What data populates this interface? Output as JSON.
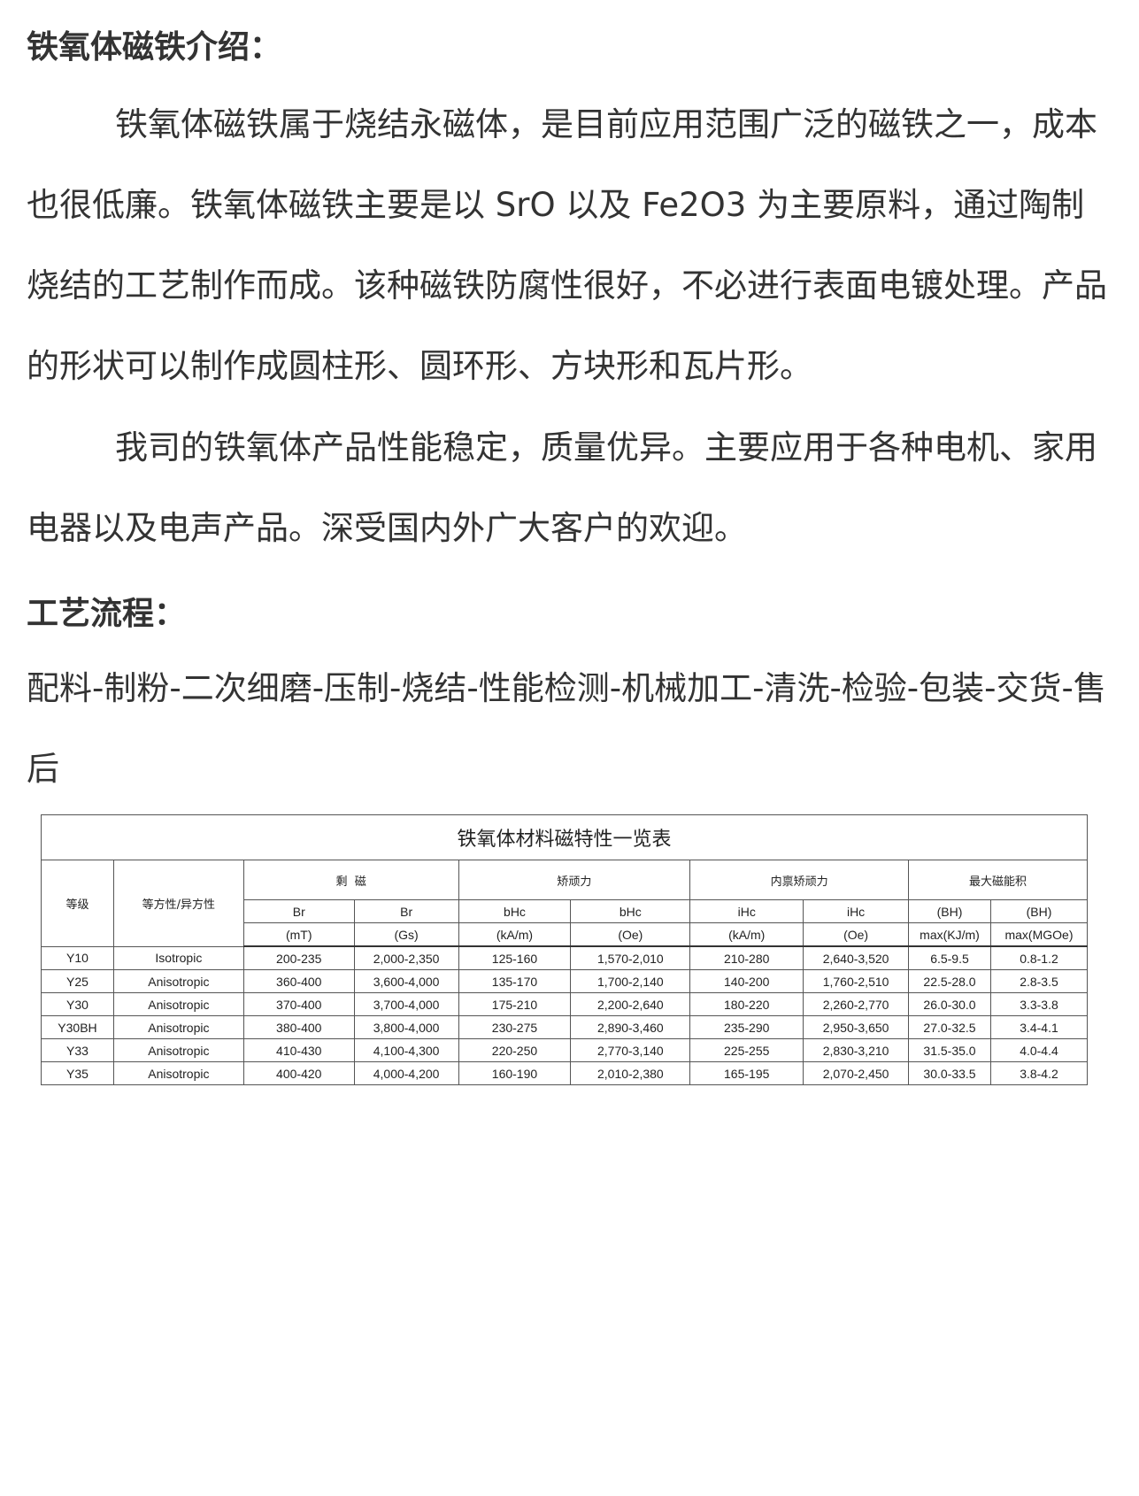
{
  "intro": {
    "heading": "铁氧体磁铁介绍：",
    "para1": "铁氧体磁铁属于烧结永磁体，是目前应用范围广泛的磁铁之一，成本也很低廉。铁氧体磁铁主要是以 SrO 以及 Fe2O3 为主要原料，通过陶制烧结的工艺制作而成。该种磁铁防腐性很好，不必进行表面电镀处理。产品的形状可以制作成圆柱形、圆环形、方块形和瓦片形。",
    "para2": "我司的铁氧体产品性能稳定，质量优异。主要应用于各种电机、家用电器以及电声产品。深受国内外广大客户的欢迎。"
  },
  "process": {
    "heading": "工艺流程：",
    "steps": "配料-制粉-二次细磨-压制-烧结-性能检测-机械加工-清洗-检验-包装-交货-售后"
  },
  "table": {
    "title": "铁氧体材料磁特性一览表",
    "grade": "等级",
    "isotropy": "等方性/异方性",
    "groups": [
      "剩  磁",
      "矫顽力",
      "内禀矫顽力",
      "最大磁能积"
    ],
    "sub1": [
      "Br",
      "Br",
      "bHc",
      "bHc",
      "iHc",
      "iHc",
      "(BH)",
      "(BH)"
    ],
    "sub2": [
      "(mT)",
      "(Gs)",
      "(kA/m)",
      "(Oe)",
      "(kA/m)",
      "(Oe)",
      "max(KJ/m)",
      "max(MGOe)"
    ],
    "rows": [
      [
        "Y10",
        "Isotropic",
        "200-235",
        "2,000-2,350",
        "125-160",
        "1,570-2,010",
        "210-280",
        "2,640-3,520",
        "6.5-9.5",
        "0.8-1.2"
      ],
      [
        "Y25",
        "Anisotropic",
        "360-400",
        "3,600-4,000",
        "135-170",
        "1,700-2,140",
        "140-200",
        "1,760-2,510",
        "22.5-28.0",
        "2.8-3.5"
      ],
      [
        "Y30",
        "Anisotropic",
        "370-400",
        "3,700-4,000",
        "175-210",
        "2,200-2,640",
        "180-220",
        "2,260-2,770",
        "26.0-30.0",
        "3.3-3.8"
      ],
      [
        "Y30BH",
        "Anisotropic",
        "380-400",
        "3,800-4,000",
        "230-275",
        "2,890-3,460",
        "235-290",
        "2,950-3,650",
        "27.0-32.5",
        "3.4-4.1"
      ],
      [
        "Y33",
        "Anisotropic",
        "410-430",
        "4,100-4,300",
        "220-250",
        "2,770-3,140",
        "225-255",
        "2,830-3,210",
        "31.5-35.0",
        "4.0-4.4"
      ],
      [
        "Y35",
        "Anisotropic",
        "400-420",
        "4,000-4,200",
        "160-190",
        "2,010-2,380",
        "165-195",
        "2,070-2,450",
        "30.0-33.5",
        "3.8-4.2"
      ]
    ]
  }
}
